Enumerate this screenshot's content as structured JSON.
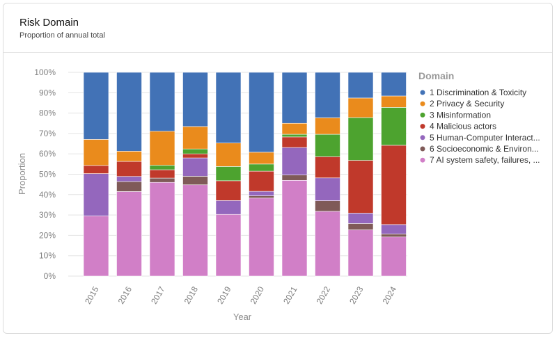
{
  "header": {
    "title": "Risk Domain",
    "subtitle": "Proportion of annual total"
  },
  "chart_data": {
    "type": "bar",
    "stacked": true,
    "title": "Risk Domain",
    "subtitle": "Proportion of annual total",
    "xlabel": "Year",
    "ylabel": "Proportion",
    "ylim": [
      0,
      100
    ],
    "yticks": [
      "0%",
      "10%",
      "20%",
      "30%",
      "40%",
      "50%",
      "60%",
      "70%",
      "80%",
      "90%",
      "100%"
    ],
    "categories": [
      "2015",
      "2016",
      "2017",
      "2018",
      "2019",
      "2020",
      "2021",
      "2022",
      "2023",
      "2024"
    ],
    "legend_title": "Domain",
    "legend_position": "right",
    "series": [
      {
        "name": "7 AI system safety, failures, ...",
        "color": "#d17fc7",
        "values": [
          29.5,
          41.5,
          46.0,
          44.8,
          30.3,
          38.3,
          47.0,
          31.8,
          22.7,
          19.2
        ]
      },
      {
        "name": "6 Socioeconomic & Environ...",
        "color": "#7f5a58",
        "values": [
          0,
          4.9,
          2.1,
          4.2,
          0,
          1.1,
          2.6,
          5.2,
          3.1,
          1.5
        ]
      },
      {
        "name": "5 Human-Computer Interact...",
        "color": "#9467bd",
        "values": [
          20.8,
          2.5,
          0,
          9.0,
          6.8,
          2.2,
          13.5,
          11.2,
          5.1,
          4.6
        ]
      },
      {
        "name": "4 Malicious actors",
        "color": "#c0392b",
        "values": [
          4.0,
          7.4,
          4.1,
          2.0,
          9.7,
          9.9,
          5.2,
          10.4,
          25.9,
          38.9
        ]
      },
      {
        "name": "3 Misinformation",
        "color": "#4da32f",
        "values": [
          0,
          0,
          2.2,
          2.4,
          7.0,
          3.5,
          1.3,
          11.0,
          21.0,
          18.6
        ]
      },
      {
        "name": "2 Privacy & Security",
        "color": "#ea8b1c",
        "values": [
          12.8,
          5.0,
          16.7,
          11.0,
          11.5,
          5.8,
          5.4,
          8.1,
          9.6,
          5.6
        ]
      },
      {
        "name": "1 Discrimination & Toxicity",
        "color": "#4272b6",
        "values": [
          32.9,
          38.7,
          28.9,
          26.6,
          34.7,
          39.2,
          25.0,
          22.3,
          12.6,
          11.6
        ]
      }
    ]
  }
}
